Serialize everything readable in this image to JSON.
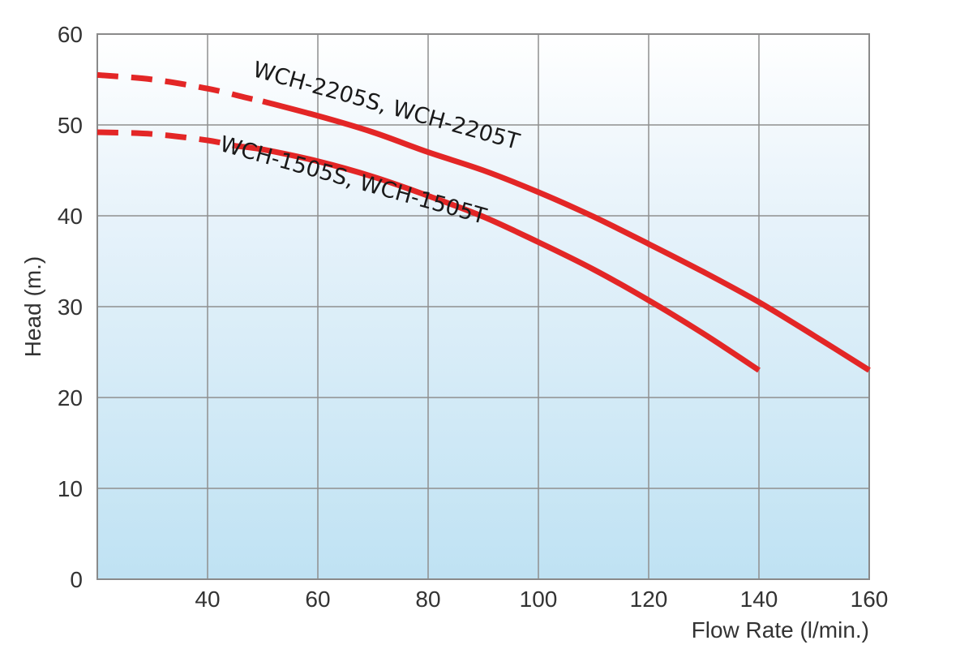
{
  "chart_data": {
    "type": "line",
    "xlabel": "Flow Rate (l/min.)",
    "ylabel": "Head (m.)",
    "xlim": [
      20,
      160
    ],
    "ylim": [
      0,
      60
    ],
    "x_ticks": [
      "40",
      "60",
      "80",
      "100",
      "120",
      "140",
      "160"
    ],
    "y_ticks": [
      "0",
      "10",
      "20",
      "30",
      "40",
      "50",
      "60"
    ],
    "grid": true,
    "background": "light blue vertical gradient",
    "series": [
      {
        "name": "WCH-2205S, WCH-2205T",
        "color": "#e32626",
        "dashed_points": [
          [
            20,
            55.5
          ],
          [
            30,
            55.0
          ],
          [
            40,
            54.0
          ],
          [
            47,
            53.0
          ],
          [
            50,
            52.6
          ]
        ],
        "points": [
          [
            50,
            52.6
          ],
          [
            60,
            51.0
          ],
          [
            70,
            49.2
          ],
          [
            80,
            47.0
          ],
          [
            90,
            45.0
          ],
          [
            100,
            42.6
          ],
          [
            110,
            39.9
          ],
          [
            120,
            36.9
          ],
          [
            130,
            33.8
          ],
          [
            140,
            30.5
          ],
          [
            150,
            26.8
          ],
          [
            160,
            23.0
          ]
        ]
      },
      {
        "name": "WCH-1505S, WCH-1505T",
        "color": "#e32626",
        "dashed_points": [
          [
            20,
            49.2
          ],
          [
            30,
            49.0
          ],
          [
            40,
            48.3
          ],
          [
            45,
            47.7
          ]
        ],
        "points": [
          [
            45,
            47.7
          ],
          [
            50,
            47.3
          ],
          [
            60,
            46.0
          ],
          [
            70,
            44.3
          ],
          [
            80,
            42.2
          ],
          [
            90,
            39.9
          ],
          [
            100,
            37.1
          ],
          [
            110,
            34.1
          ],
          [
            120,
            30.7
          ],
          [
            130,
            27.0
          ],
          [
            140,
            23.0
          ]
        ]
      }
    ]
  }
}
